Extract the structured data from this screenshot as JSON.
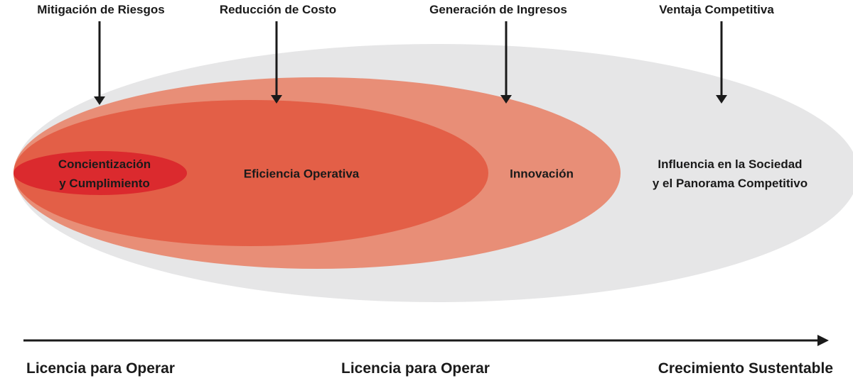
{
  "top_labels": {
    "risk": "Mitigación de Riesgos",
    "cost": "Reducción de Costo",
    "revenue": "Generación de Ingresos",
    "advantage": "Ventaja Competitiva"
  },
  "zones": {
    "awareness": {
      "line1": "Concientización",
      "line2": "y Cumplimiento"
    },
    "efficiency": {
      "line1": "Eficiencia Operativa"
    },
    "innovation": {
      "line1": "Innovación"
    },
    "influence": {
      "line1": "Influencia en la Sociedad",
      "line2": "y el Panorama Competitivo"
    }
  },
  "axis": {
    "left": "Licencia para Operar",
    "middle": "Licencia para Operar",
    "right": "Crecimiento Sustentable"
  },
  "colors": {
    "outer": "#e6e6e7",
    "innovation": "#e88e77",
    "efficiency": "#e35f47",
    "awareness": "#db2a2e",
    "ink": "#1a1a1a"
  }
}
